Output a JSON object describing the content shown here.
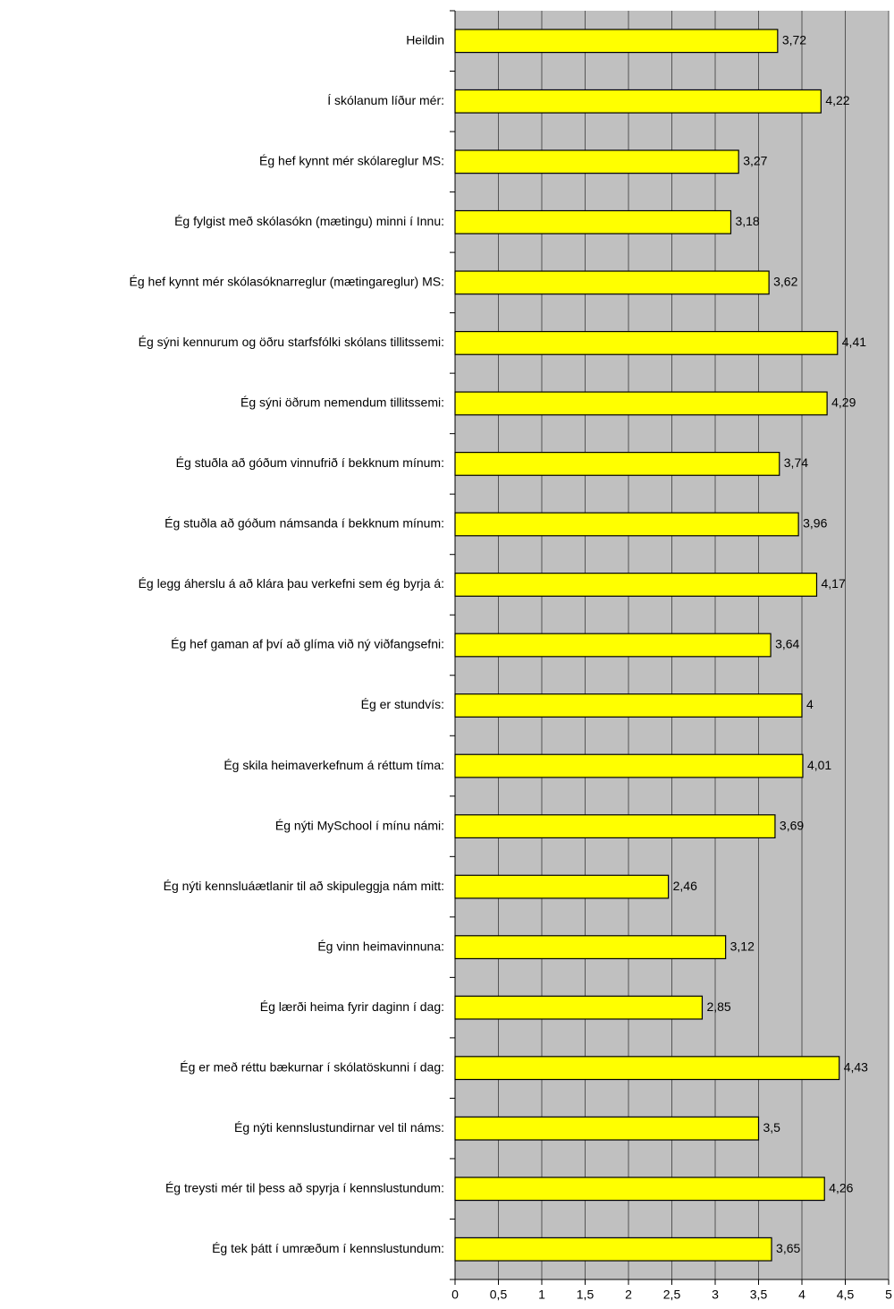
{
  "chart_data": {
    "type": "barh",
    "categories": [
      "Heildin",
      "Í skólanum líður mér:",
      "Ég hef kynnt mér skólareglur MS:",
      "Ég fylgist með skólasókn (mætingu) minni í Innu:",
      "Ég hef kynnt mér skólasóknarreglur (mætingareglur) MS:",
      "Ég sýni kennurum og öðru starfsfólki skólans tillitssemi:",
      "Ég sýni öðrum nemendum tillitssemi:",
      "Ég stuðla að góðum vinnufrið í bekknum mínum:",
      "Ég stuðla að góðum námsanda í bekknum mínum:",
      "Ég legg áherslu á að klára þau verkefni sem ég byrja á:",
      "Ég hef gaman af því að glíma við ný viðfangsefni:",
      "Ég er stundvís:",
      "Ég skila heimaverkefnum á réttum tíma:",
      "Ég nýti MySchool í mínu námi:",
      "Ég nýti kennsluáætlanir til að skipuleggja nám mitt:",
      "Ég vinn heimavinnuna:",
      "Ég lærði heima fyrir daginn í dag:",
      "Ég er með réttu bækurnar í skólatöskunni í dag:",
      "Ég nýti kennslustundirnar vel til náms:",
      "Ég treysti mér til þess að spyrja í kennslustundum:",
      "Ég tek þátt í umræðum í kennslustundum:"
    ],
    "values": [
      3.72,
      4.22,
      3.27,
      3.18,
      3.62,
      4.41,
      4.29,
      3.74,
      3.96,
      4.17,
      3.64,
      4,
      4.01,
      3.69,
      2.46,
      3.12,
      2.85,
      4.43,
      3.5,
      4.26,
      3.65
    ],
    "value_labels": [
      "3,72",
      "4,22",
      "3,27",
      "3,18",
      "3,62",
      "4,41",
      "4,29",
      "3,74",
      "3,96",
      "4,17",
      "3,64",
      "4",
      "4,01",
      "3,69",
      "2,46",
      "3,12",
      "2,85",
      "4,43",
      "3,5",
      "4,26",
      "3,65"
    ],
    "color": "#ffff00",
    "xlim": [
      0,
      5
    ],
    "xticks": [
      0,
      {
        "value": 0.5,
        "label": "0,5"
      },
      1,
      {
        "value": 1.5,
        "label": "1,5"
      },
      2,
      {
        "value": 2.5,
        "label": "2,5"
      },
      3,
      {
        "value": 3.5,
        "label": "3,5"
      },
      4,
      {
        "value": 4.5,
        "label": "4,5"
      },
      5
    ],
    "grid": true
  }
}
